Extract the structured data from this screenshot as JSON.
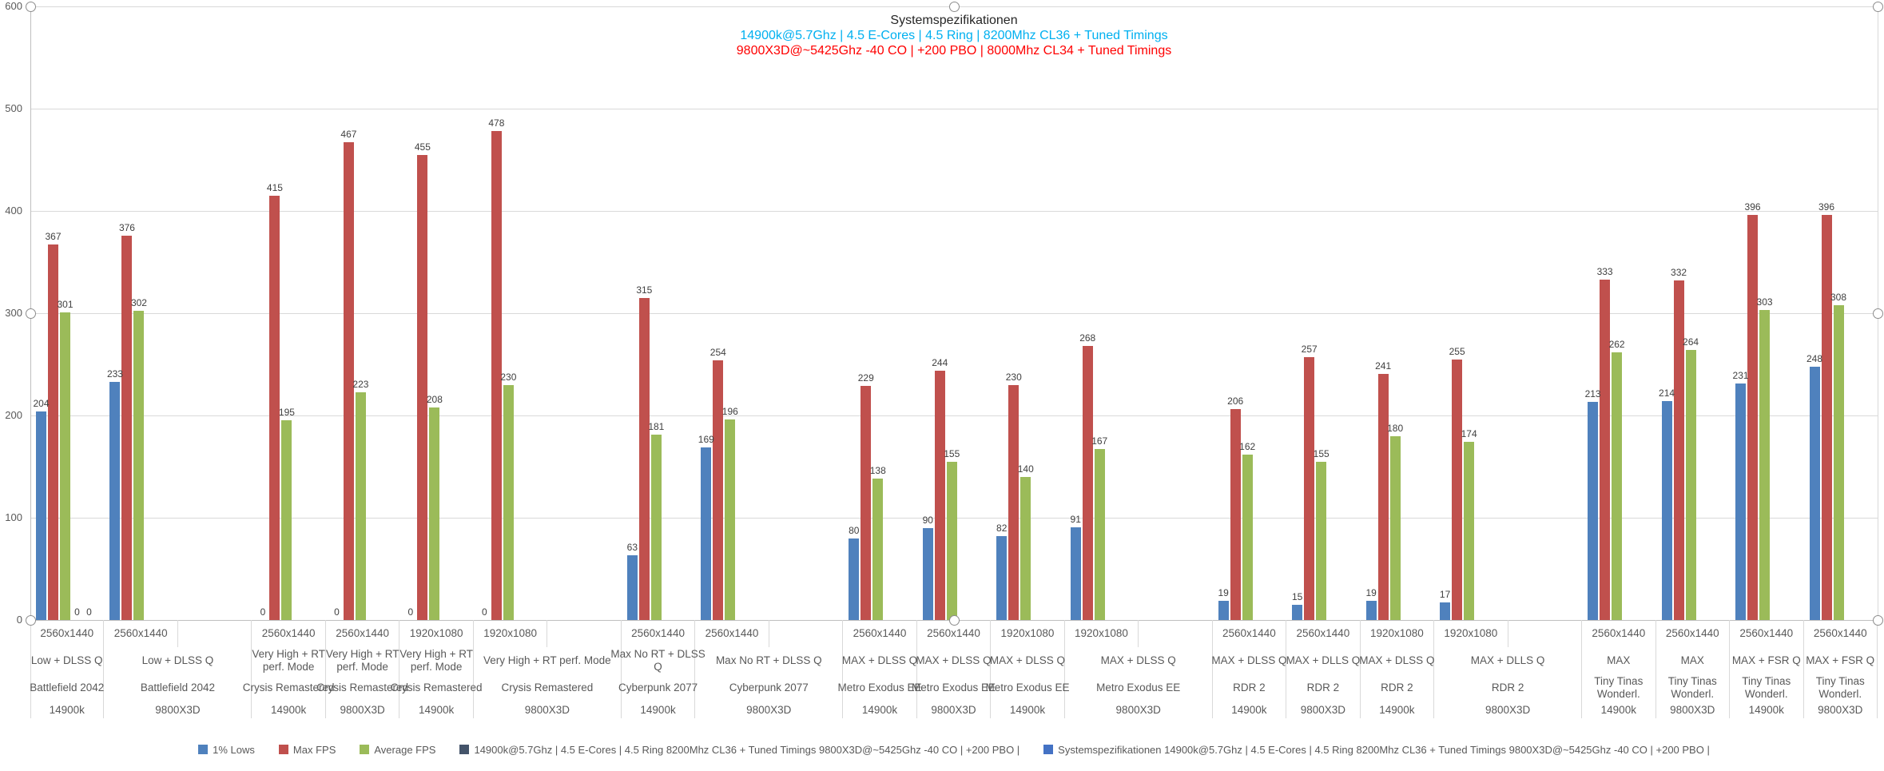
{
  "title": {
    "line1": "Systemspezifikationen",
    "line2": "14900k@5.7Ghz | 4.5 E-Cores | 4.5 Ring | 8200Mhz CL36 + Tuned Timings",
    "line3": "9800X3D@~5425Ghz -40 CO | +200 PBO | 8000Mhz CL34 + Tuned Timings"
  },
  "colors": {
    "lows": "#4F81BD",
    "max_fps": "#C0504D",
    "avg_fps": "#9BBB59",
    "series4": "#44546A",
    "series5": "#4472C4",
    "title_line2": "#00B0F0",
    "title_line3": "#FF0000",
    "gridline": "#D9D9D9",
    "axis_line": "#BFBFBF",
    "data_label_text": "#3F3F3F",
    "axis_text": "#595959"
  },
  "chart_data": {
    "type": "bar",
    "title": "Systemspezifikationen",
    "subtitle_intel": "14900k@5.7Ghz | 4.5 E-Cores | 4.5 Ring | 8200Mhz CL36 + Tuned Timings",
    "subtitle_amd": "9800X3D@~5425Ghz -40 CO | +200 PBO | 8000Mhz CL34 + Tuned Timings",
    "ylabel": "",
    "xlabel": "",
    "ylim": [
      0,
      600
    ],
    "yticks": [
      0,
      100,
      200,
      300,
      400,
      500,
      600
    ],
    "grid": true,
    "legend_position": "bottom",
    "series": [
      {
        "name": "1% Lows",
        "color": "#4F81BD",
        "values": [
          204,
          233,
          0,
          0,
          0,
          0,
          63,
          169,
          80,
          90,
          82,
          91,
          19,
          15,
          19,
          17,
          213,
          214,
          231,
          248
        ]
      },
      {
        "name": "Max FPS",
        "color": "#C0504D",
        "values": [
          367,
          376,
          415,
          467,
          455,
          478,
          315,
          254,
          229,
          244,
          230,
          268,
          206,
          257,
          241,
          255,
          333,
          332,
          396,
          396
        ]
      },
      {
        "name": "Average FPS",
        "color": "#9BBB59",
        "values": [
          301,
          302,
          195,
          223,
          208,
          230,
          181,
          196,
          138,
          155,
          140,
          167,
          162,
          155,
          180,
          174,
          262,
          264,
          303,
          308
        ]
      },
      {
        "name": "14900k@5.7Ghz | 4.5 E-Cores | 4.5 Ring 8200Mhz CL36 + Tuned Timings 9800X3D@~5425Ghz -40 CO | +200 PBO |",
        "color": "#44546A",
        "values": [
          0,
          null,
          null,
          null,
          null,
          null,
          null,
          null,
          null,
          null,
          null,
          null,
          null,
          null,
          null,
          null,
          null,
          null,
          null,
          null
        ]
      },
      {
        "name": "Systemspezifikationen 14900k@5.7Ghz | 4.5 E-Cores | 4.5 Ring 8200Mhz CL36 + Tuned Timings 9800X3D@~5425Ghz -40 CO | +200 PBO |",
        "color": "#4472C4",
        "values": [
          0,
          null,
          null,
          null,
          null,
          null,
          null,
          null,
          null,
          null,
          null,
          null,
          null,
          null,
          null,
          null,
          null,
          null,
          null,
          null
        ]
      }
    ],
    "categories": [
      {
        "resolution": "2560x1440",
        "settings": [
          "Low + DLSS Q"
        ],
        "game": [
          "Battlefield 2042"
        ],
        "cpu": "14900k",
        "wide": false
      },
      {
        "resolution": "2560x1440",
        "settings": [
          "Low + DLSS Q"
        ],
        "game": [
          "Battlefield 2042"
        ],
        "cpu": "9800X3D",
        "wide": true
      },
      {
        "resolution": "2560x1440",
        "settings": [
          "Very High + RT",
          "perf. Mode"
        ],
        "game": [
          "Crysis Remastered"
        ],
        "cpu": "14900k",
        "wide": false
      },
      {
        "resolution": "2560x1440",
        "settings": [
          "Very High + RT",
          "perf. Mode"
        ],
        "game": [
          "Crysis Remastered"
        ],
        "cpu": "9800X3D",
        "wide": false
      },
      {
        "resolution": "1920x1080",
        "settings": [
          "Very High + RT",
          "perf. Mode"
        ],
        "game": [
          "Crysis Remastered"
        ],
        "cpu": "14900k",
        "wide": false
      },
      {
        "resolution": "1920x1080",
        "settings": [
          "Very High + RT perf. Mode"
        ],
        "game": [
          "Crysis Remastered"
        ],
        "cpu": "9800X3D",
        "wide": true
      },
      {
        "resolution": "2560x1440",
        "settings": [
          "Max No RT + DLSS",
          "Q"
        ],
        "game": [
          "Cyberpunk 2077"
        ],
        "cpu": "14900k",
        "wide": false
      },
      {
        "resolution": "2560x1440",
        "settings": [
          "Max No RT + DLSS Q"
        ],
        "game": [
          "Cyberpunk 2077"
        ],
        "cpu": "9800X3D",
        "wide": true
      },
      {
        "resolution": "2560x1440",
        "settings": [
          "MAX +  DLSS Q"
        ],
        "game": [
          "Metro Exodus EE"
        ],
        "cpu": "14900k",
        "wide": false
      },
      {
        "resolution": "2560x1440",
        "settings": [
          "MAX +  DLSS Q"
        ],
        "game": [
          "Metro Exodus EE"
        ],
        "cpu": "9800X3D",
        "wide": false
      },
      {
        "resolution": "1920x1080",
        "settings": [
          "MAX +  DLSS Q"
        ],
        "game": [
          "Metro Exodus EE"
        ],
        "cpu": "14900k",
        "wide": false
      },
      {
        "resolution": "1920x1080",
        "settings": [
          "MAX +  DLSS Q"
        ],
        "game": [
          "Metro Exodus EE"
        ],
        "cpu": "9800X3D",
        "wide": true
      },
      {
        "resolution": "2560x1440",
        "settings": [
          "MAX + DLSS Q"
        ],
        "game": [
          "RDR 2"
        ],
        "cpu": "14900k",
        "wide": false
      },
      {
        "resolution": "2560x1440",
        "settings": [
          "MAX + DLLS Q"
        ],
        "game": [
          "RDR 2"
        ],
        "cpu": "9800X3D",
        "wide": false
      },
      {
        "resolution": "1920x1080",
        "settings": [
          "MAX + DLSS Q"
        ],
        "game": [
          "RDR 2"
        ],
        "cpu": "14900k",
        "wide": false
      },
      {
        "resolution": "1920x1080",
        "settings": [
          "MAX + DLLS Q"
        ],
        "game": [
          "RDR 2"
        ],
        "cpu": "9800X3D",
        "wide": true
      },
      {
        "resolution": "2560x1440",
        "settings": [
          "MAX"
        ],
        "game": [
          "Tiny Tinas",
          "Wonderl."
        ],
        "cpu": "14900k",
        "wide": false
      },
      {
        "resolution": "2560x1440",
        "settings": [
          "MAX"
        ],
        "game": [
          "Tiny Tinas",
          "Wonderl."
        ],
        "cpu": "9800X3D",
        "wide": false
      },
      {
        "resolution": "2560x1440",
        "settings": [
          "MAX + FSR Q"
        ],
        "game": [
          "Tiny Tinas",
          "Wonderl."
        ],
        "cpu": "14900k",
        "wide": false
      },
      {
        "resolution": "2560x1440",
        "settings": [
          "MAX + FSR Q"
        ],
        "game": [
          "Tiny Tinas",
          "Wonderl."
        ],
        "cpu": "9800X3D",
        "wide": false
      }
    ]
  }
}
